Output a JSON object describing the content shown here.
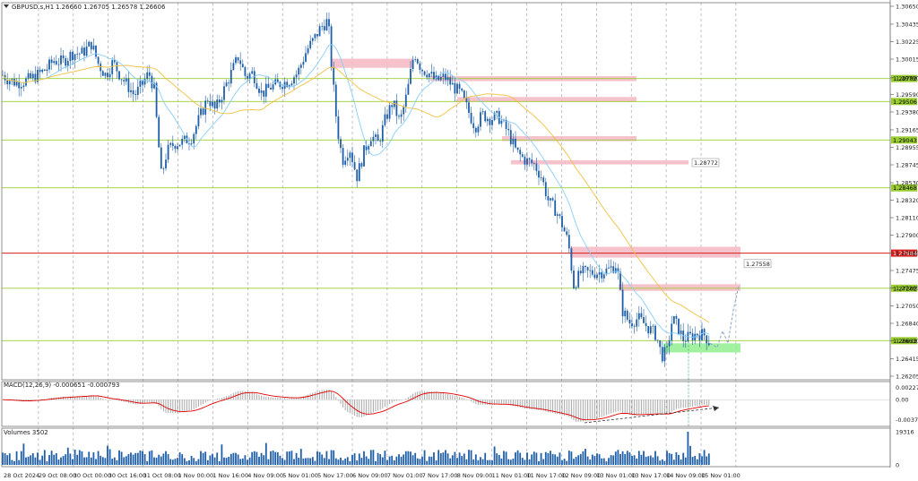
{
  "window": {
    "title": "GBPUSD.s,H1",
    "ohlc": "1.26660 1.26705 1.26578 1.26606"
  },
  "chart_data": {
    "type": "candlestick",
    "symbol": "GBPUSD.s",
    "timeframe": "H1",
    "ohlc_last": {
      "open": 1.2666,
      "high": 1.26705,
      "low": 1.26578,
      "close": 1.26606
    },
    "price_ticks": [
      "1.30650",
      "1.30435",
      "1.30225",
      "1.30015",
      "1.29790",
      "1.29590",
      "1.29380",
      "1.29165",
      "1.28955",
      "1.28745",
      "1.28530",
      "1.28320",
      "1.28110",
      "1.27900",
      "1.27685",
      "1.27475",
      "1.27265",
      "1.27050",
      "1.26840",
      "1.26630",
      "1.26415",
      "1.26205"
    ],
    "time_ticks": [
      "28 Oct 2024",
      "29 Oct 08:00",
      "30 Oct 00:00",
      "30 Oct 16:00",
      "31 Oct 08:00",
      "1 Nov 00:00",
      "1 Nov 16:00",
      "4 Nov 09:00",
      "5 Nov 01:00",
      "5 Nov 17:00",
      "6 Nov 09:00",
      "7 Nov 01:00",
      "7 Nov 17:00",
      "8 Nov 09:00",
      "11 Nov 01:00",
      "11 Nov 17:00",
      "12 Nov 09:00",
      "13 Nov 01:00",
      "13 Nov 17:00",
      "14 Nov 09:00",
      "15 Nov 01:00"
    ],
    "price_path": [
      [
        0,
        1.2985
      ],
      [
        8,
        1.2978
      ],
      [
        18,
        1.2973
      ],
      [
        28,
        1.2975
      ],
      [
        40,
        1.2981
      ],
      [
        52,
        1.299
      ],
      [
        60,
        1.3
      ],
      [
        70,
        1.2998
      ],
      [
        80,
        1.3008
      ],
      [
        92,
        1.3009
      ],
      [
        102,
        1.302
      ],
      [
        110,
        1.2995
      ],
      [
        118,
        1.2982
      ],
      [
        126,
        1.2998
      ],
      [
        134,
        1.2982
      ],
      [
        142,
        1.297
      ],
      [
        150,
        1.2958
      ],
      [
        158,
        1.297
      ],
      [
        166,
        1.2985
      ],
      [
        172,
        1.2965
      ],
      [
        176,
        1.291
      ],
      [
        180,
        1.286
      ],
      [
        186,
        1.289
      ],
      [
        194,
        1.29
      ],
      [
        204,
        1.2902
      ],
      [
        214,
        1.2908
      ],
      [
        224,
        1.2935
      ],
      [
        232,
        1.2955
      ],
      [
        240,
        1.294
      ],
      [
        250,
        1.2965
      ],
      [
        258,
        1.2985
      ],
      [
        266,
        1.3005
      ],
      [
        274,
        1.298
      ],
      [
        282,
        1.2985
      ],
      [
        292,
        1.296
      ],
      [
        302,
        1.2968
      ],
      [
        312,
        1.2972
      ],
      [
        322,
        1.2975
      ],
      [
        332,
        1.2985
      ],
      [
        342,
        1.3012
      ],
      [
        350,
        1.3025
      ],
      [
        358,
        1.304
      ],
      [
        366,
        1.3048
      ],
      [
        370,
        1.299
      ],
      [
        376,
        1.292
      ],
      [
        382,
        1.288
      ],
      [
        390,
        1.2895
      ],
      [
        398,
        1.286
      ],
      [
        406,
        1.289
      ],
      [
        414,
        1.291
      ],
      [
        422,
        1.29
      ],
      [
        430,
        1.293
      ],
      [
        438,
        1.295
      ],
      [
        446,
        1.2925
      ],
      [
        454,
        1.296
      ],
      [
        462,
        1.301
      ],
      [
        470,
        1.299
      ],
      [
        478,
        1.2985
      ],
      [
        486,
        1.2975
      ],
      [
        496,
        1.298
      ],
      [
        506,
        1.2968
      ],
      [
        514,
        1.296
      ],
      [
        522,
        1.294
      ],
      [
        530,
        1.292
      ],
      [
        538,
        1.2935
      ],
      [
        546,
        1.293
      ],
      [
        556,
        1.2932
      ],
      [
        566,
        1.2915
      ],
      [
        576,
        1.289
      ],
      [
        586,
        1.288
      ],
      [
        596,
        1.2875
      ],
      [
        604,
        1.286
      ],
      [
        612,
        1.283
      ],
      [
        620,
        1.282
      ],
      [
        628,
        1.28
      ],
      [
        634,
        1.278
      ],
      [
        640,
        1.273
      ],
      [
        648,
        1.2745
      ],
      [
        658,
        1.2745
      ],
      [
        668,
        1.2745
      ],
      [
        678,
        1.2748
      ],
      [
        688,
        1.2755
      ],
      [
        694,
        1.27
      ],
      [
        702,
        1.2685
      ],
      [
        712,
        1.269
      ],
      [
        722,
        1.268
      ],
      [
        732,
        1.267
      ],
      [
        738,
        1.2645
      ],
      [
        744,
        1.265
      ],
      [
        750,
        1.269
      ],
      [
        756,
        1.268
      ],
      [
        762,
        1.2665
      ],
      [
        770,
        1.2668
      ],
      [
        778,
        1.2672
      ],
      [
        786,
        1.267
      ],
      [
        792,
        1.266
      ]
    ],
    "projection_path": [
      [
        792,
        1.266
      ],
      [
        800,
        1.2655
      ],
      [
        806,
        1.2675
      ],
      [
        812,
        1.266
      ],
      [
        818,
        1.27
      ],
      [
        824,
        1.2729
      ]
    ],
    "ma_fast_color": "#87cefa",
    "ma_slow_color": "#f0c040",
    "green_levels": [
      {
        "price": 1.29782,
        "label": "1.29782"
      },
      {
        "price": 1.29506,
        "label": "1.29506"
      },
      {
        "price": 1.29043,
        "label": "1.29043"
      },
      {
        "price": 1.28468,
        "label": "1.28468"
      },
      {
        "price": 1.27262,
        "label": "1.27262"
      },
      {
        "price": 1.26632,
        "label": "1.26632"
      }
    ],
    "red_level": {
      "price": 1.27684,
      "label": "1.27684"
    },
    "zones_pink": [
      {
        "x1": 370,
        "x2": 460,
        "p1": 1.3002,
        "p2": 1.2991
      },
      {
        "x1": 480,
        "x2": 710,
        "p1": 1.2981,
        "p2": 1.2975
      },
      {
        "x1": 510,
        "x2": 710,
        "p1": 1.2956,
        "p2": 1.295
      },
      {
        "x1": 560,
        "x2": 710,
        "p1": 1.2909,
        "p2": 1.2903
      },
      {
        "x1": 570,
        "x2": 768,
        "p1": 1.288,
        "p2": 1.2875
      },
      {
        "x1": 636,
        "x2": 826,
        "p1": 1.2776,
        "p2": 1.2763
      },
      {
        "x1": 690,
        "x2": 826,
        "p1": 1.2731,
        "p2": 1.2723
      }
    ],
    "zone_green": {
      "x1": 740,
      "x2": 826,
      "p1": 1.266,
      "p2": 1.2649
    },
    "tags_gray": [
      {
        "x1": 772,
        "price": 1.28772,
        "label": "1.28772"
      },
      {
        "x1": 830,
        "price": 1.27558,
        "label": "1.27558"
      }
    ],
    "macd": {
      "label": "MACD(12,26,9) -0.000651 -0.000793",
      "ticks": [
        "0.002275",
        "0.00",
        "-0.003766"
      ],
      "range": [
        -0.0045,
        0.0029
      ],
      "signal_color": "#e00000"
    },
    "volume": {
      "label": "Volumes 3502",
      "ticks": [
        "19316",
        "0"
      ],
      "max": 19316
    }
  }
}
